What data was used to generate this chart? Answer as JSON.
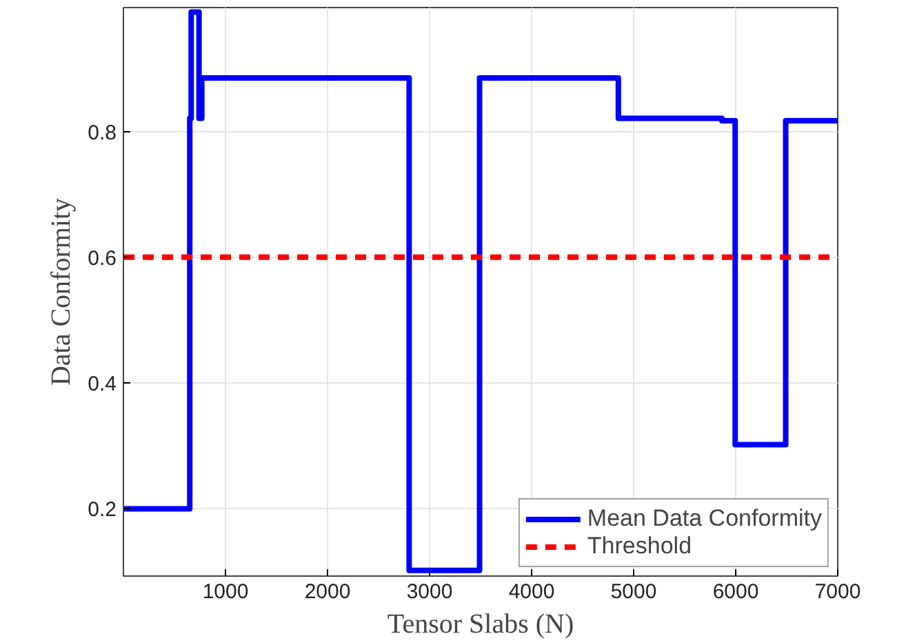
{
  "chart_data": {
    "type": "line",
    "xlabel": "Tensor Slabs (N)",
    "ylabel": "Data Conformity",
    "xlim": [
      0,
      7000
    ],
    "ylim": [
      0.093,
      0.997
    ],
    "xticks": [
      1000,
      2000,
      3000,
      4000,
      5000,
      6000,
      7000
    ],
    "yticks": [
      0.2,
      0.4,
      0.6,
      0.8
    ],
    "grid": true,
    "legend": "bottom right",
    "marker": "none",
    "series": [
      {
        "name": "Mean Data Conformity",
        "color": "#0000ff",
        "line_style": "solid",
        "x": [
          0,
          650,
          650,
          664,
          664,
          741,
          741,
          768,
          768,
          2800,
          2800,
          3490,
          3490,
          4850,
          4850,
          5865,
          5865,
          5995,
          5995,
          6490,
          6490,
          7000
        ],
        "values": [
          0.2,
          0.2,
          0.821,
          0.821,
          0.99,
          0.99,
          0.821,
          0.821,
          0.885,
          0.885,
          0.102,
          0.102,
          0.885,
          0.885,
          0.821,
          0.821,
          0.817,
          0.817,
          0.302,
          0.302,
          0.817,
          0.817
        ]
      },
      {
        "name": "Threshold",
        "color": "#ff0000",
        "line_style": "dashed",
        "x": [
          0,
          7000
        ],
        "values": [
          0.6,
          0.6
        ]
      }
    ]
  }
}
